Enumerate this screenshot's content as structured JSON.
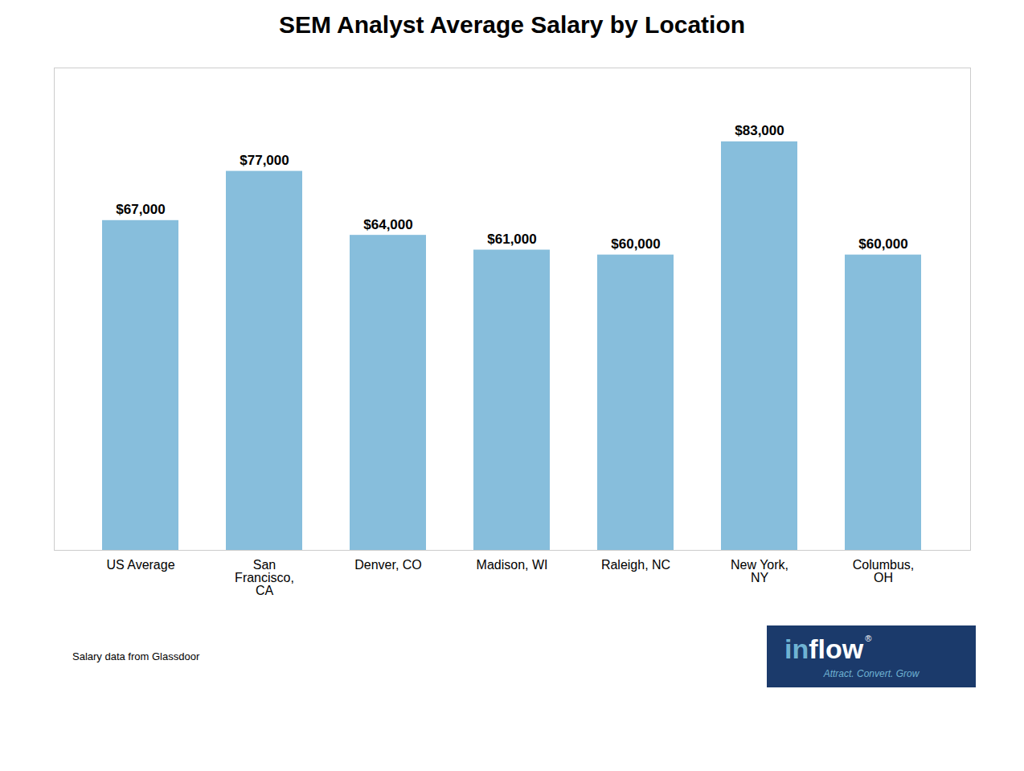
{
  "chart_data": {
    "type": "bar",
    "title": "SEM Analyst Average Salary by Location",
    "categories": [
      "US Average",
      "San\nFrancisco,\nCA",
      "Denver, CO",
      "Madison, WI",
      "Raleigh, NC",
      "New York,\nNY",
      "Columbus,\nOH"
    ],
    "values": [
      67000,
      77000,
      64000,
      61000,
      60000,
      83000,
      60000
    ],
    "value_labels": [
      "$67,000",
      "$77,000",
      "$64,000",
      "$61,000",
      "$60,000",
      "$83,000",
      "$60,000"
    ],
    "data_labels": true,
    "color": "#87BEDC",
    "ylim": [
      0,
      98000
    ],
    "tick_labels": "x",
    "grid": false,
    "annotations": [
      {
        "text": "Salary data from Glassdoor"
      },
      {
        "text": "in",
        "color": "#6FB3D3",
        "background": "#1B3A6B"
      },
      {
        "text": "flow",
        "color": "#FFFFFF",
        "background": "#1B3A6B"
      },
      {
        "text": "®",
        "color": "#FFFFFF",
        "background": "#1B3A6B"
      },
      {
        "text": "Attract. Convert. Grow",
        "color": "#6FB3D3",
        "background": "#1B3A6B"
      }
    ]
  }
}
